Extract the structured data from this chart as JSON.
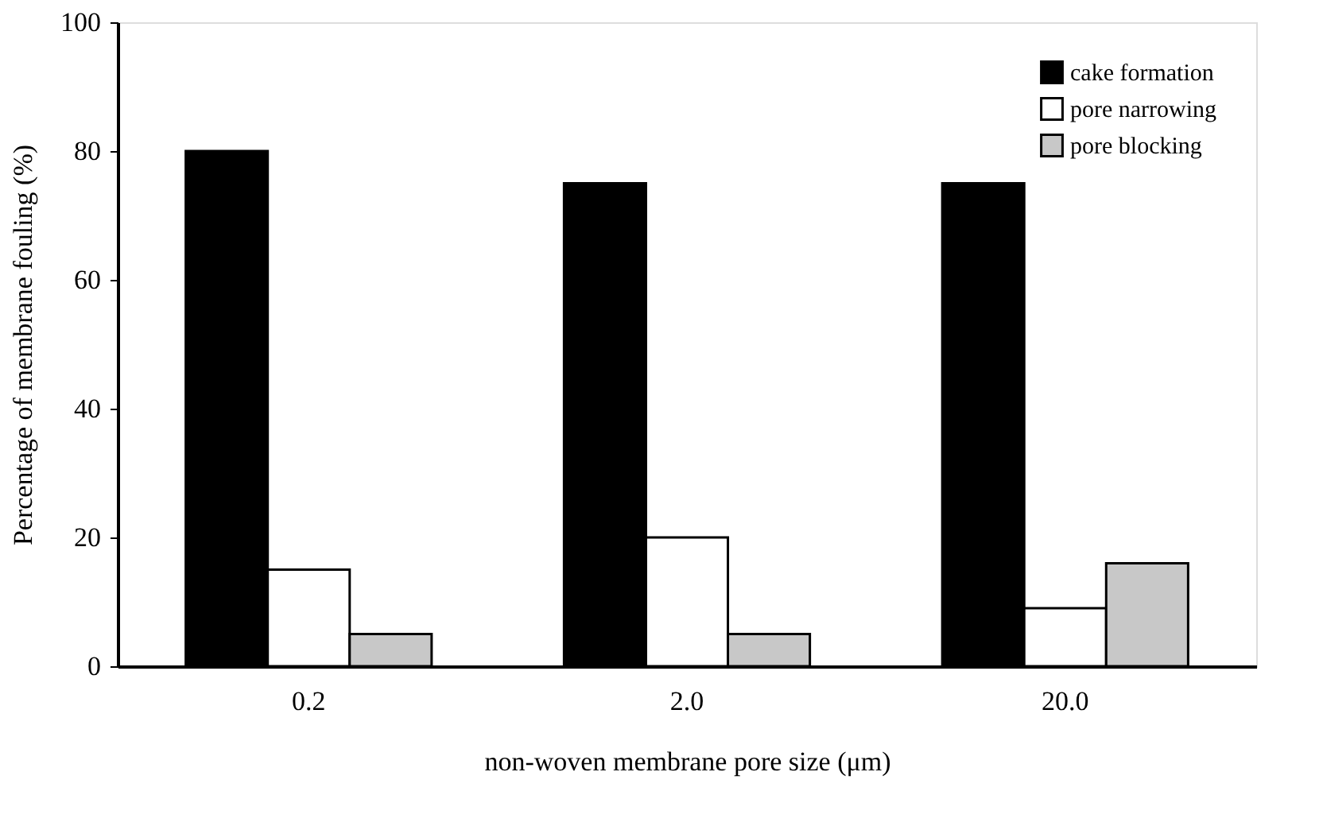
{
  "chart_data": {
    "type": "bar",
    "xlabel": "non-woven membrane pore size (μm)",
    "ylabel": "Percentage of membrane fouling (%)",
    "categories": [
      "0.2",
      "2.0",
      "20.0"
    ],
    "series": [
      {
        "name": "cake formation",
        "color": "#000000",
        "values": [
          80,
          75,
          75
        ]
      },
      {
        "name": "pore narrowing",
        "color": "#ffffff",
        "values": [
          15,
          20,
          9
        ]
      },
      {
        "name": "pore blocking",
        "color": "#c8c8c8",
        "values": [
          5,
          5,
          16
        ]
      }
    ],
    "ylim": [
      0,
      100
    ],
    "yticks": [
      0,
      20,
      40,
      60,
      80,
      100
    ],
    "grid": false,
    "legend": "top right"
  }
}
